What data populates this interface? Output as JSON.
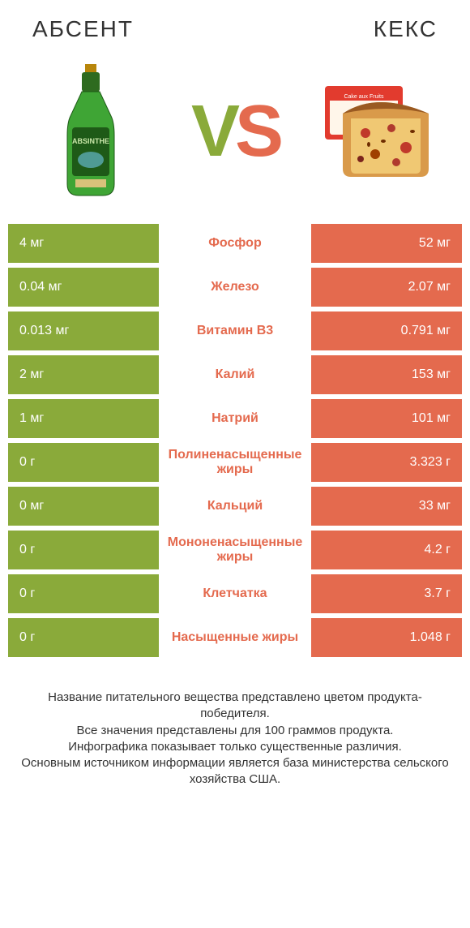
{
  "colors": {
    "green": "#8aaa3a",
    "orange": "#e46a4e",
    "text": "#333333",
    "bg": "#ffffff"
  },
  "header": {
    "left_title": "АБСЕНТ",
    "right_title": "КЕКС",
    "vs_v": "V",
    "vs_s": "S"
  },
  "rows": [
    {
      "left": "4 мг",
      "label": "Фосфор",
      "right": "52 мг",
      "winner": "right"
    },
    {
      "left": "0.04 мг",
      "label": "Железо",
      "right": "2.07 мг",
      "winner": "right"
    },
    {
      "left": "0.013 мг",
      "label": "Витамин B3",
      "right": "0.791 мг",
      "winner": "right"
    },
    {
      "left": "2 мг",
      "label": "Калий",
      "right": "153 мг",
      "winner": "right"
    },
    {
      "left": "1 мг",
      "label": "Натрий",
      "right": "101 мг",
      "winner": "right"
    },
    {
      "left": "0 г",
      "label": "Полиненасыщенные жиры",
      "right": "3.323 г",
      "winner": "right"
    },
    {
      "left": "0 мг",
      "label": "Кальций",
      "right": "33 мг",
      "winner": "right"
    },
    {
      "left": "0 г",
      "label": "Мононенасыщенные жиры",
      "right": "4.2 г",
      "winner": "right"
    },
    {
      "left": "0 г",
      "label": "Клетчатка",
      "right": "3.7 г",
      "winner": "right"
    },
    {
      "left": "0 г",
      "label": "Насыщенные жиры",
      "right": "1.048 г",
      "winner": "right"
    }
  ],
  "footer": {
    "line1": "Название питательного вещества представлено цветом продукта-победителя.",
    "line2": "Все значения представлены для 100 граммов продукта.",
    "line3": "Инфографика показывает только существенные различия.",
    "line4": "Основным источником информации является база министерства сельского хозяйства США."
  }
}
